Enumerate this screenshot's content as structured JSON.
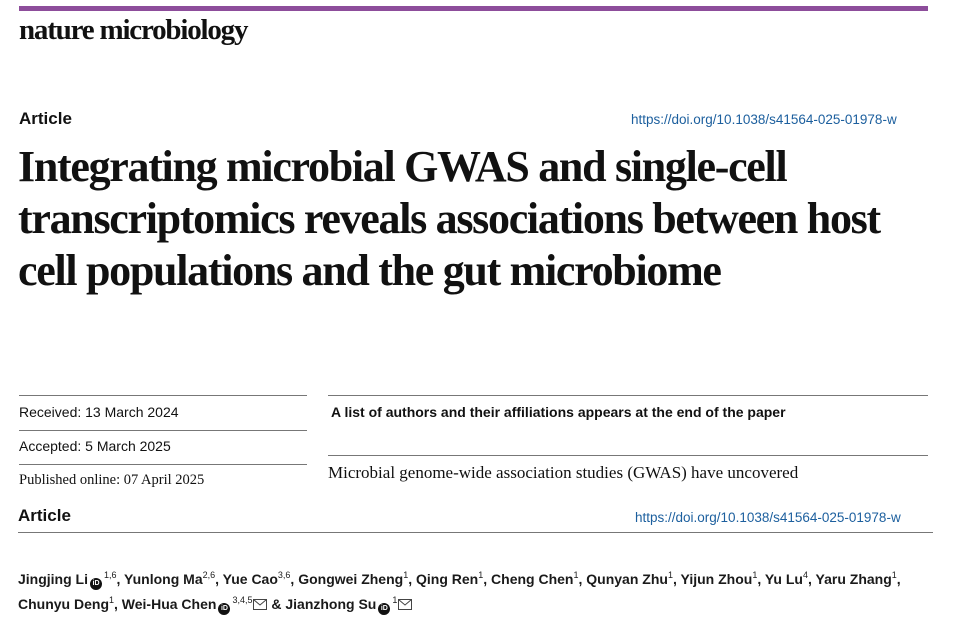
{
  "header": {
    "accent_color": "#8d4d9b",
    "journal": "nature microbiology"
  },
  "article_type": "Article",
  "doi": "https://doi.org/10.1038/s41564-025-01978-w",
  "title": "Integrating microbial GWAS and single-cell transcriptomics reveals associations between host cell populations and the gut microbiome",
  "dates": {
    "received": "Received: 13 March 2024",
    "accepted": "Accepted: 5 March 2025",
    "published": "Published online: 07 April 2025"
  },
  "affiliations_note": "A list of authors and their affiliations appears at the end of the paper",
  "abstract_start": "Microbial genome-wide association studies (GWAS) have uncovered",
  "second_header": {
    "article_type": "Article",
    "doi": "https://doi.org/10.1038/s41564-025-01978-w"
  },
  "authors": [
    {
      "name": "Jingjing Li",
      "orcid": true,
      "sup": "1,6",
      "mail": false,
      "sep": ","
    },
    {
      "name": "Yunlong Ma",
      "orcid": false,
      "sup": "2,6",
      "mail": false,
      "sep": ","
    },
    {
      "name": "Yue Cao",
      "orcid": false,
      "sup": "3,6",
      "mail": false,
      "sep": ","
    },
    {
      "name": "Gongwei Zheng",
      "orcid": false,
      "sup": "1",
      "mail": false,
      "sep": ","
    },
    {
      "name": "Qing Ren",
      "orcid": false,
      "sup": "1",
      "mail": false,
      "sep": ","
    },
    {
      "name": "Cheng Chen",
      "orcid": false,
      "sup": "1",
      "mail": false,
      "sep": ","
    },
    {
      "name": "Qunyan Zhu",
      "orcid": false,
      "sup": "1",
      "mail": false,
      "sep": ","
    },
    {
      "name": "Yijun Zhou",
      "orcid": false,
      "sup": "1",
      "mail": false,
      "sep": ","
    },
    {
      "name": "Yu Lu",
      "orcid": false,
      "sup": "4",
      "mail": false,
      "sep": ","
    },
    {
      "name": "Yaru Zhang",
      "orcid": false,
      "sup": "1",
      "mail": false,
      "sep": ","
    },
    {
      "name": "Chunyu Deng",
      "orcid": false,
      "sup": "1",
      "mail": false,
      "sep": ","
    },
    {
      "name": "Wei-Hua Chen",
      "orcid": true,
      "sup": "3,4,5",
      "mail": true,
      "sep": " &"
    },
    {
      "name": "Jianzhong Su",
      "orcid": true,
      "sup": "1",
      "mail": true,
      "sep": ""
    }
  ]
}
